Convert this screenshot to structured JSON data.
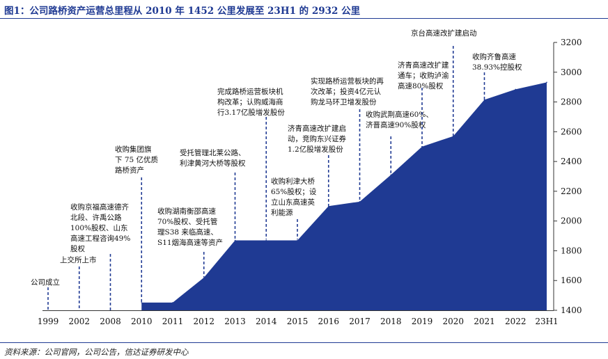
{
  "title": "图1：公司路桥资产运营总里程从 2010 年 1452 公里发展至 23H1 的 2932 公里",
  "source": "资料来源：公司官网，公司公告，信达证券研发中心",
  "colors": {
    "area": "#1f3a93",
    "annotation_line": "#1f3a93",
    "axis": "#333333"
  },
  "chart_data": {
    "type": "area",
    "title": "图1：公司路桥资产运营总里程从 2010 年 1452 公里发展至 23H1 的 2932 公里",
    "xlabel": "",
    "ylabel": "",
    "categories": [
      "1999",
      "2002",
      "2008",
      "2010",
      "2011",
      "2012",
      "2013",
      "2014",
      "2015",
      "2016",
      "2017",
      "2018",
      "2019",
      "2020",
      "2021",
      "2022",
      "23H1"
    ],
    "values": [
      null,
      null,
      null,
      1452,
      1452,
      1620,
      1870,
      1870,
      1870,
      2100,
      2130,
      2310,
      2500,
      2570,
      2815,
      2885,
      2932
    ],
    "ylim": [
      1400,
      3200
    ],
    "yticks": [
      1400,
      1600,
      1800,
      2000,
      2200,
      2400,
      2600,
      2800,
      3000,
      3200
    ],
    "y_axis_side": "right",
    "grid": false,
    "legend": "none",
    "annotations": [
      {
        "category": "1999",
        "lines": [
          "公司成立"
        ]
      },
      {
        "category": "2002",
        "lines": [
          "上交所上市"
        ]
      },
      {
        "category": "2008",
        "lines": [
          "收购京福高速德齐",
          "北段、许禹公路",
          "100%股权、山东",
          "高速工程咨询49%",
          "股权"
        ]
      },
      {
        "category": "2010",
        "lines": [
          "收购集团旗",
          "下 75 亿优质",
          "路桥资产"
        ]
      },
      {
        "category": "2012",
        "lines": [
          "收购湖南衡邵高速",
          "70%股权、受托管",
          "理S38 来临高速、",
          "S11烟海高速等资产"
        ]
      },
      {
        "category": "2013",
        "lines": [
          "受托管理北莱公路、",
          "利津黄河大桥等股权"
        ]
      },
      {
        "category": "2014",
        "lines": [
          "完成路桥运营板块机",
          "构改革；认购威海商",
          "行3.17亿股增发股份"
        ]
      },
      {
        "category": "2015",
        "lines": [
          "收购利津大桥",
          "65%股权；设",
          "立山东高速英",
          "利能源"
        ]
      },
      {
        "category": "2016",
        "lines": [
          "济青高速改扩建启",
          "动，竞购东兴证券",
          "1.2亿股增发股份"
        ]
      },
      {
        "category": "2017",
        "lines": [
          "实现路桥运营板块的再",
          "次改革；投资4亿元认",
          "购龙马环卫增发股份"
        ]
      },
      {
        "category": "2018",
        "lines": [
          "收购武荆高速60%、",
          "济晋高速90%股权"
        ]
      },
      {
        "category": "2019",
        "lines": [
          "济青高速改扩建",
          "通车；收购泸渝",
          "高速80%股权"
        ]
      },
      {
        "category": "2020",
        "lines": [
          "京台高速改扩建启动"
        ]
      },
      {
        "category": "2021",
        "lines": [
          "收购齐鲁高速",
          "38.93%控股权"
        ]
      }
    ]
  }
}
